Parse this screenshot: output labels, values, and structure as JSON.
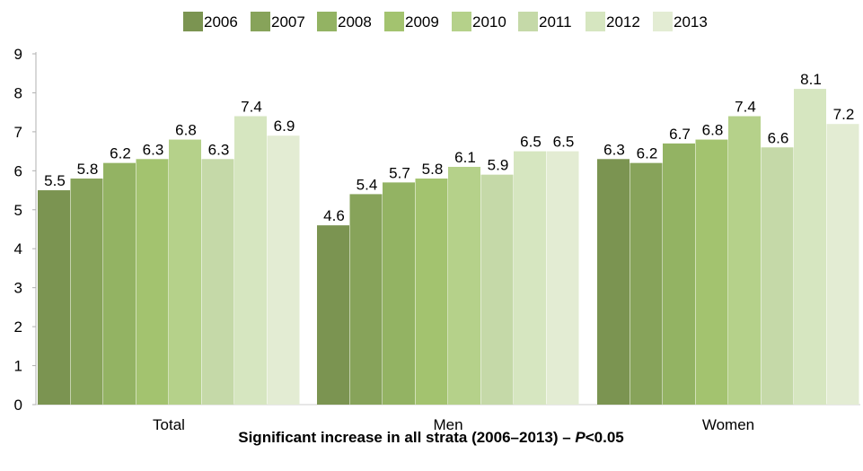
{
  "chart_data": {
    "type": "bar",
    "categories": [
      "Total",
      "Men",
      "Women"
    ],
    "series": [
      {
        "name": "2006",
        "color": "#7b9451",
        "values": [
          5.5,
          4.6,
          6.3
        ]
      },
      {
        "name": "2007",
        "color": "#87a35a",
        "values": [
          5.8,
          5.4,
          6.2
        ]
      },
      {
        "name": "2008",
        "color": "#93b363",
        "values": [
          6.2,
          5.7,
          6.7
        ]
      },
      {
        "name": "2009",
        "color": "#a3c36f",
        "values": [
          6.3,
          5.8,
          6.8
        ]
      },
      {
        "name": "2010",
        "color": "#b5d18a",
        "values": [
          6.8,
          6.1,
          7.4
        ]
      },
      {
        "name": "2011",
        "color": "#c5d9a8",
        "values": [
          6.3,
          5.9,
          6.6
        ]
      },
      {
        "name": "2012",
        "color": "#d6e6c0",
        "values": [
          7.4,
          6.5,
          8.1
        ]
      },
      {
        "name": "2013",
        "color": "#e3ecd3",
        "values": [
          6.9,
          6.5,
          7.2
        ]
      }
    ],
    "y_ticks": [
      "0",
      "1",
      "2",
      "3",
      "4",
      "5",
      "6",
      "7",
      "8",
      "9"
    ],
    "ylim": [
      0,
      9
    ],
    "grid": false,
    "legend_position": "top",
    "footnote_main": "Significant increase in all strata (2006–2013) – ",
    "footnote_p": "P",
    "footnote_tail": "<0.05"
  }
}
